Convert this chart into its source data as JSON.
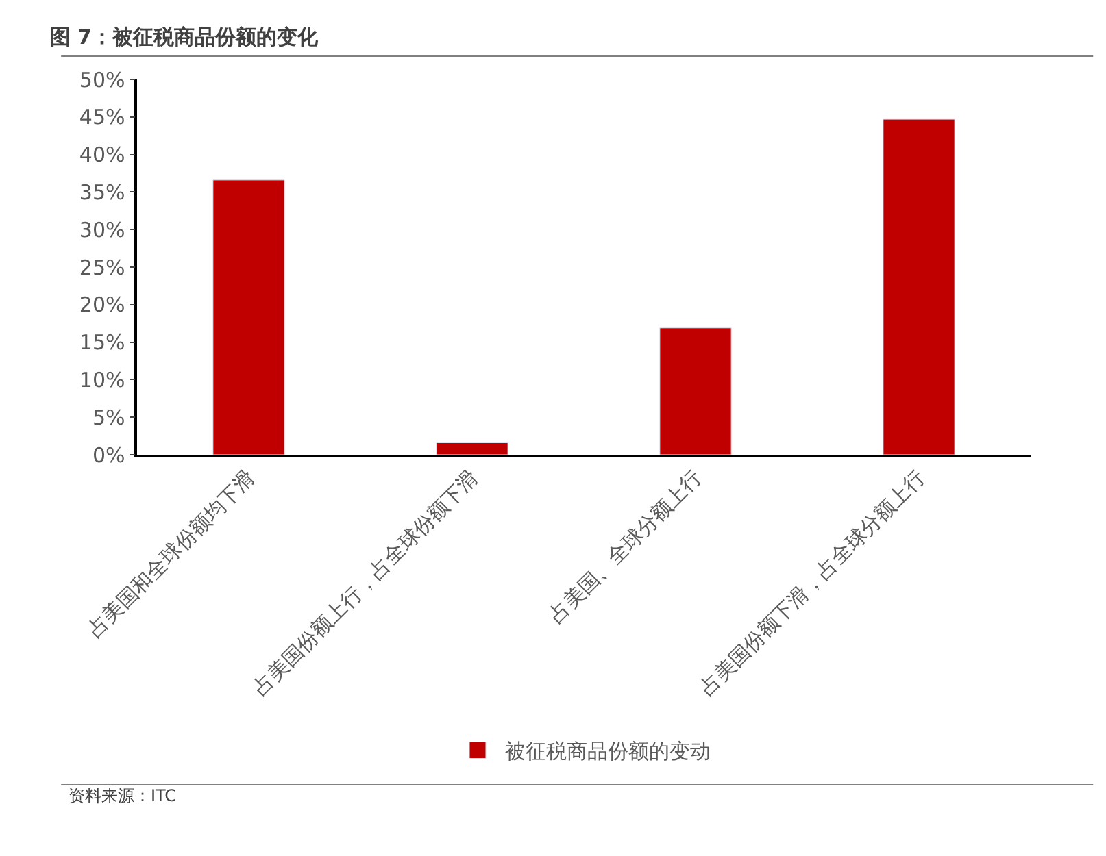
{
  "chart_data": {
    "type": "bar",
    "title": "图 7：被征税商品份额的变化",
    "categories": [
      "占美国和全球份额均下滑",
      "占美国份额上行，占全球份额下滑",
      "占美国、全球分额上行",
      "占美国份额下滑，占全球分额上行"
    ],
    "series": [
      {
        "name": "被征税商品份额的变动",
        "color": "#c00000",
        "values": [
          36.6,
          1.6,
          16.9,
          44.7
        ]
      }
    ],
    "ylim": [
      0,
      50
    ],
    "yticks": [
      {
        "value": 0,
        "label": "0%"
      },
      {
        "value": 5,
        "label": "5%"
      },
      {
        "value": 10,
        "label": "10%"
      },
      {
        "value": 15,
        "label": "15%"
      },
      {
        "value": 20,
        "label": "20%"
      },
      {
        "value": 25,
        "label": "25%"
      },
      {
        "value": 30,
        "label": "30%"
      },
      {
        "value": 35,
        "label": "35%"
      },
      {
        "value": 40,
        "label": "40%"
      },
      {
        "value": 45,
        "label": "45%"
      },
      {
        "value": 50,
        "label": "50%"
      }
    ],
    "legend": "bottom",
    "annotations": [
      "资料来源：ITC"
    ]
  }
}
